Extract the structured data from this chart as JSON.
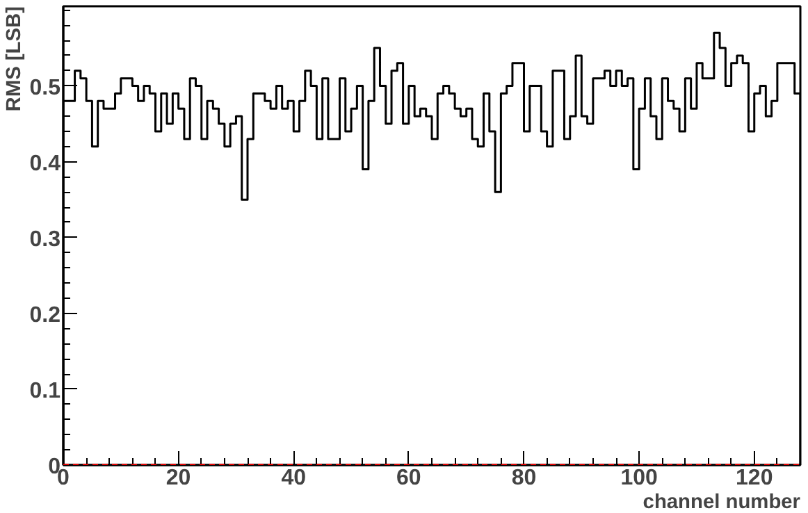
{
  "chart_data": {
    "type": "histogram",
    "xlabel": "channel number",
    "ylabel": "RMS [LSB]",
    "bins": [
      0,
      1,
      2,
      3,
      4,
      5,
      6,
      7,
      8,
      9,
      10,
      11,
      12,
      13,
      14,
      15,
      16,
      17,
      18,
      19,
      20,
      21,
      22,
      23,
      24,
      25,
      26,
      27,
      28,
      29,
      30,
      31,
      32,
      33,
      34,
      35,
      36,
      37,
      38,
      39,
      40,
      41,
      42,
      43,
      44,
      45,
      46,
      47,
      48,
      49,
      50,
      51,
      52,
      53,
      54,
      55,
      56,
      57,
      58,
      59,
      60,
      61,
      62,
      63,
      64,
      65,
      66,
      67,
      68,
      69,
      70,
      71,
      72,
      73,
      74,
      75,
      76,
      77,
      78,
      79,
      80,
      81,
      82,
      83,
      84,
      85,
      86,
      87,
      88,
      89,
      90,
      91,
      92,
      93,
      94,
      95,
      96,
      97,
      98,
      99,
      100,
      101,
      102,
      103,
      104,
      105,
      106,
      107,
      108,
      109,
      110,
      111,
      112,
      113,
      114,
      115,
      116,
      117,
      118,
      119,
      120,
      121,
      122,
      123,
      124,
      125,
      126,
      127,
      128
    ],
    "values": [
      0.48,
      0.48,
      0.52,
      0.51,
      0.48,
      0.42,
      0.48,
      0.47,
      0.47,
      0.49,
      0.51,
      0.51,
      0.5,
      0.48,
      0.5,
      0.49,
      0.44,
      0.49,
      0.45,
      0.49,
      0.47,
      0.43,
      0.51,
      0.5,
      0.43,
      0.48,
      0.47,
      0.45,
      0.42,
      0.45,
      0.46,
      0.35,
      0.43,
      0.49,
      0.49,
      0.48,
      0.47,
      0.5,
      0.47,
      0.48,
      0.44,
      0.48,
      0.52,
      0.5,
      0.43,
      0.51,
      0.43,
      0.43,
      0.51,
      0.44,
      0.47,
      0.5,
      0.39,
      0.48,
      0.55,
      0.5,
      0.45,
      0.52,
      0.53,
      0.45,
      0.5,
      0.46,
      0.47,
      0.46,
      0.43,
      0.49,
      0.5,
      0.49,
      0.47,
      0.46,
      0.47,
      0.43,
      0.42,
      0.49,
      0.44,
      0.36,
      0.49,
      0.5,
      0.53,
      0.53,
      0.44,
      0.5,
      0.5,
      0.44,
      0.42,
      0.52,
      0.52,
      0.43,
      0.46,
      0.54,
      0.46,
      0.45,
      0.51,
      0.51,
      0.52,
      0.5,
      0.52,
      0.5,
      0.51,
      0.39,
      0.47,
      0.51,
      0.46,
      0.43,
      0.51,
      0.48,
      0.47,
      0.44,
      0.51,
      0.47,
      0.53,
      0.51,
      0.51,
      0.57,
      0.55,
      0.5,
      0.53,
      0.54,
      0.53,
      0.44,
      0.49,
      0.5,
      0.46,
      0.48,
      0.53,
      0.53,
      0.53,
      0.49
    ],
    "color": "#000000",
    "xlim": [
      0,
      128
    ],
    "ylim": [
      0,
      0.605
    ],
    "xticks": [
      0,
      20,
      40,
      60,
      80,
      100,
      120
    ],
    "yticks": [
      0,
      0.1,
      0.2,
      0.3,
      0.4,
      0.5
    ],
    "grid": false,
    "ref_lines": [
      {
        "axis": "y",
        "value": 0,
        "color": "#ff0000",
        "line_style": "dashed"
      }
    ]
  }
}
